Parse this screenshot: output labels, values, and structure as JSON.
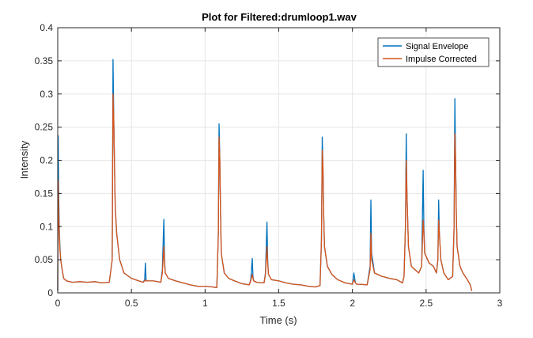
{
  "chart_data": {
    "type": "line",
    "title": "Plot for Filtered:drumloop1.wav",
    "xlabel": "Time (s)",
    "ylabel": "Intensity",
    "xlim": [
      0,
      3
    ],
    "ylim": [
      0,
      0.4
    ],
    "xticks": [
      0,
      0.5,
      1,
      1.5,
      2,
      2.5,
      3
    ],
    "xtick_labels": [
      "0",
      "0.5",
      "1",
      "1.5",
      "2",
      "2.5",
      "3"
    ],
    "yticks": [
      0,
      0.05,
      0.1,
      0.15,
      0.2,
      0.25,
      0.3,
      0.35,
      0.4
    ],
    "ytick_labels": [
      "0",
      "0.05",
      "0.1",
      "0.15",
      "0.2",
      "0.25",
      "0.3",
      "0.35",
      "0.4"
    ],
    "grid": true,
    "legend_position": "top-right",
    "series": [
      {
        "name": "Signal Envelope",
        "color": "#0072BD",
        "x": [
          0,
          0.003,
          0.006,
          0.01,
          0.015,
          0.02,
          0.03,
          0.04,
          0.06,
          0.1,
          0.15,
          0.2,
          0.25,
          0.3,
          0.35,
          0.37,
          0.375,
          0.38,
          0.385,
          0.39,
          0.4,
          0.42,
          0.45,
          0.5,
          0.55,
          0.58,
          0.59,
          0.595,
          0.6,
          0.65,
          0.7,
          0.71,
          0.72,
          0.725,
          0.73,
          0.75,
          0.8,
          0.85,
          0.9,
          0.95,
          1.0,
          1.05,
          1.08,
          1.09,
          1.095,
          1.1,
          1.105,
          1.11,
          1.13,
          1.16,
          1.2,
          1.25,
          1.3,
          1.31,
          1.32,
          1.325,
          1.33,
          1.35,
          1.4,
          1.41,
          1.42,
          1.425,
          1.43,
          1.45,
          1.5,
          1.55,
          1.6,
          1.65,
          1.7,
          1.75,
          1.78,
          1.79,
          1.795,
          1.8,
          1.805,
          1.81,
          1.83,
          1.86,
          1.9,
          1.95,
          2.0,
          2.01,
          2.02,
          2.03,
          2.05,
          2.1,
          2.12,
          2.125,
          2.13,
          2.15,
          2.2,
          2.25,
          2.3,
          2.34,
          2.35,
          2.36,
          2.365,
          2.37,
          2.38,
          2.4,
          2.45,
          2.47,
          2.48,
          2.485,
          2.49,
          2.52,
          2.55,
          2.57,
          2.58,
          2.585,
          2.59,
          2.6,
          2.62,
          2.65,
          2.68,
          2.69,
          2.695,
          2.7,
          2.705,
          2.71,
          2.73,
          2.75,
          2.78,
          2.8,
          2.81
        ],
        "y": [
          0.003,
          0.237,
          0.16,
          0.1,
          0.07,
          0.05,
          0.035,
          0.022,
          0.018,
          0.016,
          0.017,
          0.016,
          0.017,
          0.015,
          0.016,
          0.05,
          0.352,
          0.27,
          0.2,
          0.13,
          0.09,
          0.05,
          0.03,
          0.022,
          0.018,
          0.016,
          0.02,
          0.045,
          0.018,
          0.018,
          0.016,
          0.035,
          0.111,
          0.05,
          0.03,
          0.022,
          0.018,
          0.015,
          0.012,
          0.01,
          0.01,
          0.009,
          0.008,
          0.09,
          0.255,
          0.2,
          0.12,
          0.06,
          0.03,
          0.022,
          0.018,
          0.014,
          0.012,
          0.02,
          0.052,
          0.025,
          0.018,
          0.016,
          0.015,
          0.03,
          0.107,
          0.05,
          0.028,
          0.02,
          0.018,
          0.015,
          0.013,
          0.012,
          0.01,
          0.009,
          0.011,
          0.08,
          0.235,
          0.19,
          0.12,
          0.07,
          0.04,
          0.028,
          0.02,
          0.015,
          0.013,
          0.03,
          0.015,
          0.013,
          0.013,
          0.012,
          0.04,
          0.14,
          0.06,
          0.03,
          0.025,
          0.022,
          0.02,
          0.015,
          0.025,
          0.1,
          0.24,
          0.15,
          0.07,
          0.04,
          0.03,
          0.04,
          0.185,
          0.1,
          0.06,
          0.045,
          0.04,
          0.03,
          0.05,
          0.14,
          0.09,
          0.05,
          0.03,
          0.02,
          0.025,
          0.1,
          0.293,
          0.2,
          0.12,
          0.07,
          0.04,
          0.03,
          0.02,
          0.012,
          0.003
        ]
      },
      {
        "name": "Impulse Corrected",
        "color": "#D95319",
        "x": [
          0,
          0.003,
          0.006,
          0.01,
          0.015,
          0.02,
          0.03,
          0.04,
          0.06,
          0.1,
          0.15,
          0.2,
          0.25,
          0.3,
          0.35,
          0.37,
          0.375,
          0.38,
          0.385,
          0.39,
          0.4,
          0.42,
          0.45,
          0.5,
          0.55,
          0.58,
          0.59,
          0.595,
          0.6,
          0.65,
          0.7,
          0.71,
          0.72,
          0.725,
          0.73,
          0.75,
          0.8,
          0.85,
          0.9,
          0.95,
          1.0,
          1.05,
          1.08,
          1.09,
          1.095,
          1.1,
          1.105,
          1.11,
          1.13,
          1.16,
          1.2,
          1.25,
          1.3,
          1.31,
          1.32,
          1.325,
          1.33,
          1.35,
          1.4,
          1.41,
          1.42,
          1.425,
          1.43,
          1.45,
          1.5,
          1.55,
          1.6,
          1.65,
          1.7,
          1.75,
          1.78,
          1.79,
          1.795,
          1.8,
          1.805,
          1.81,
          1.83,
          1.86,
          1.9,
          1.95,
          2.0,
          2.01,
          2.02,
          2.03,
          2.05,
          2.1,
          2.12,
          2.125,
          2.13,
          2.15,
          2.2,
          2.25,
          2.3,
          2.34,
          2.35,
          2.36,
          2.365,
          2.37,
          2.38,
          2.4,
          2.45,
          2.47,
          2.48,
          2.485,
          2.49,
          2.52,
          2.55,
          2.57,
          2.58,
          2.585,
          2.59,
          2.6,
          2.62,
          2.65,
          2.68,
          2.69,
          2.695,
          2.7,
          2.705,
          2.71,
          2.73,
          2.75,
          2.78,
          2.8,
          2.81
        ],
        "y": [
          0.003,
          0.17,
          0.13,
          0.09,
          0.065,
          0.05,
          0.035,
          0.022,
          0.018,
          0.016,
          0.017,
          0.016,
          0.017,
          0.015,
          0.016,
          0.05,
          0.3,
          0.265,
          0.2,
          0.13,
          0.09,
          0.05,
          0.03,
          0.022,
          0.018,
          0.016,
          0.018,
          0.02,
          0.018,
          0.018,
          0.016,
          0.03,
          0.07,
          0.045,
          0.03,
          0.022,
          0.018,
          0.015,
          0.012,
          0.01,
          0.01,
          0.009,
          0.008,
          0.09,
          0.235,
          0.2,
          0.12,
          0.06,
          0.03,
          0.022,
          0.018,
          0.014,
          0.012,
          0.018,
          0.028,
          0.022,
          0.018,
          0.016,
          0.015,
          0.028,
          0.07,
          0.045,
          0.028,
          0.02,
          0.018,
          0.015,
          0.013,
          0.012,
          0.01,
          0.009,
          0.011,
          0.08,
          0.215,
          0.19,
          0.12,
          0.07,
          0.04,
          0.028,
          0.02,
          0.015,
          0.013,
          0.02,
          0.015,
          0.013,
          0.013,
          0.012,
          0.035,
          0.09,
          0.05,
          0.03,
          0.025,
          0.022,
          0.02,
          0.015,
          0.025,
          0.1,
          0.2,
          0.15,
          0.07,
          0.04,
          0.03,
          0.04,
          0.11,
          0.09,
          0.06,
          0.045,
          0.04,
          0.03,
          0.05,
          0.11,
          0.09,
          0.05,
          0.03,
          0.02,
          0.025,
          0.1,
          0.24,
          0.2,
          0.12,
          0.07,
          0.04,
          0.03,
          0.02,
          0.012,
          0.003
        ]
      }
    ]
  }
}
